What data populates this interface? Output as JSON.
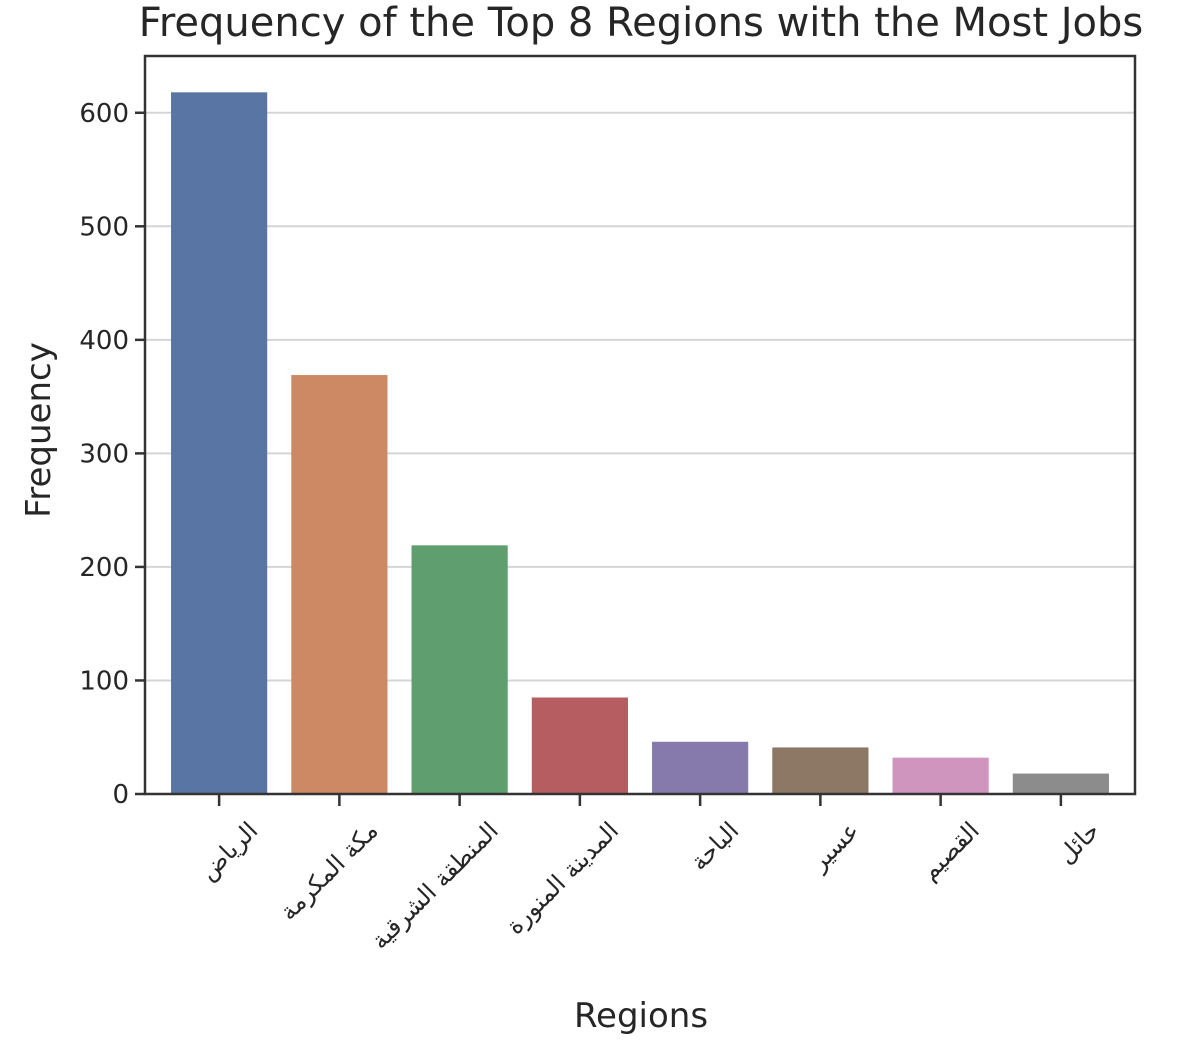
{
  "chart_data": {
    "type": "bar",
    "title": "Frequency of the Top 8 Regions with the Most Jobs",
    "xlabel": "Regions",
    "ylabel": "Frequency",
    "categories": [
      "الرياض",
      "مكة المكرمة",
      "المنطقة الشرقية",
      "المدينة المنورة",
      "الباحة",
      "عسير",
      "القصيم",
      "حائل"
    ],
    "values": [
      618,
      369,
      219,
      85,
      46,
      41,
      32,
      18
    ],
    "colors": [
      "#5975a4",
      "#cc8963",
      "#5f9e6e",
      "#b55d60",
      "#857aab",
      "#8d7866",
      "#d095bf",
      "#8c8c8c"
    ],
    "ylim": [
      0,
      650
    ],
    "yticks": [
      0,
      100,
      200,
      300,
      400,
      500,
      600
    ],
    "grid": "horizontal",
    "legend": "none"
  }
}
